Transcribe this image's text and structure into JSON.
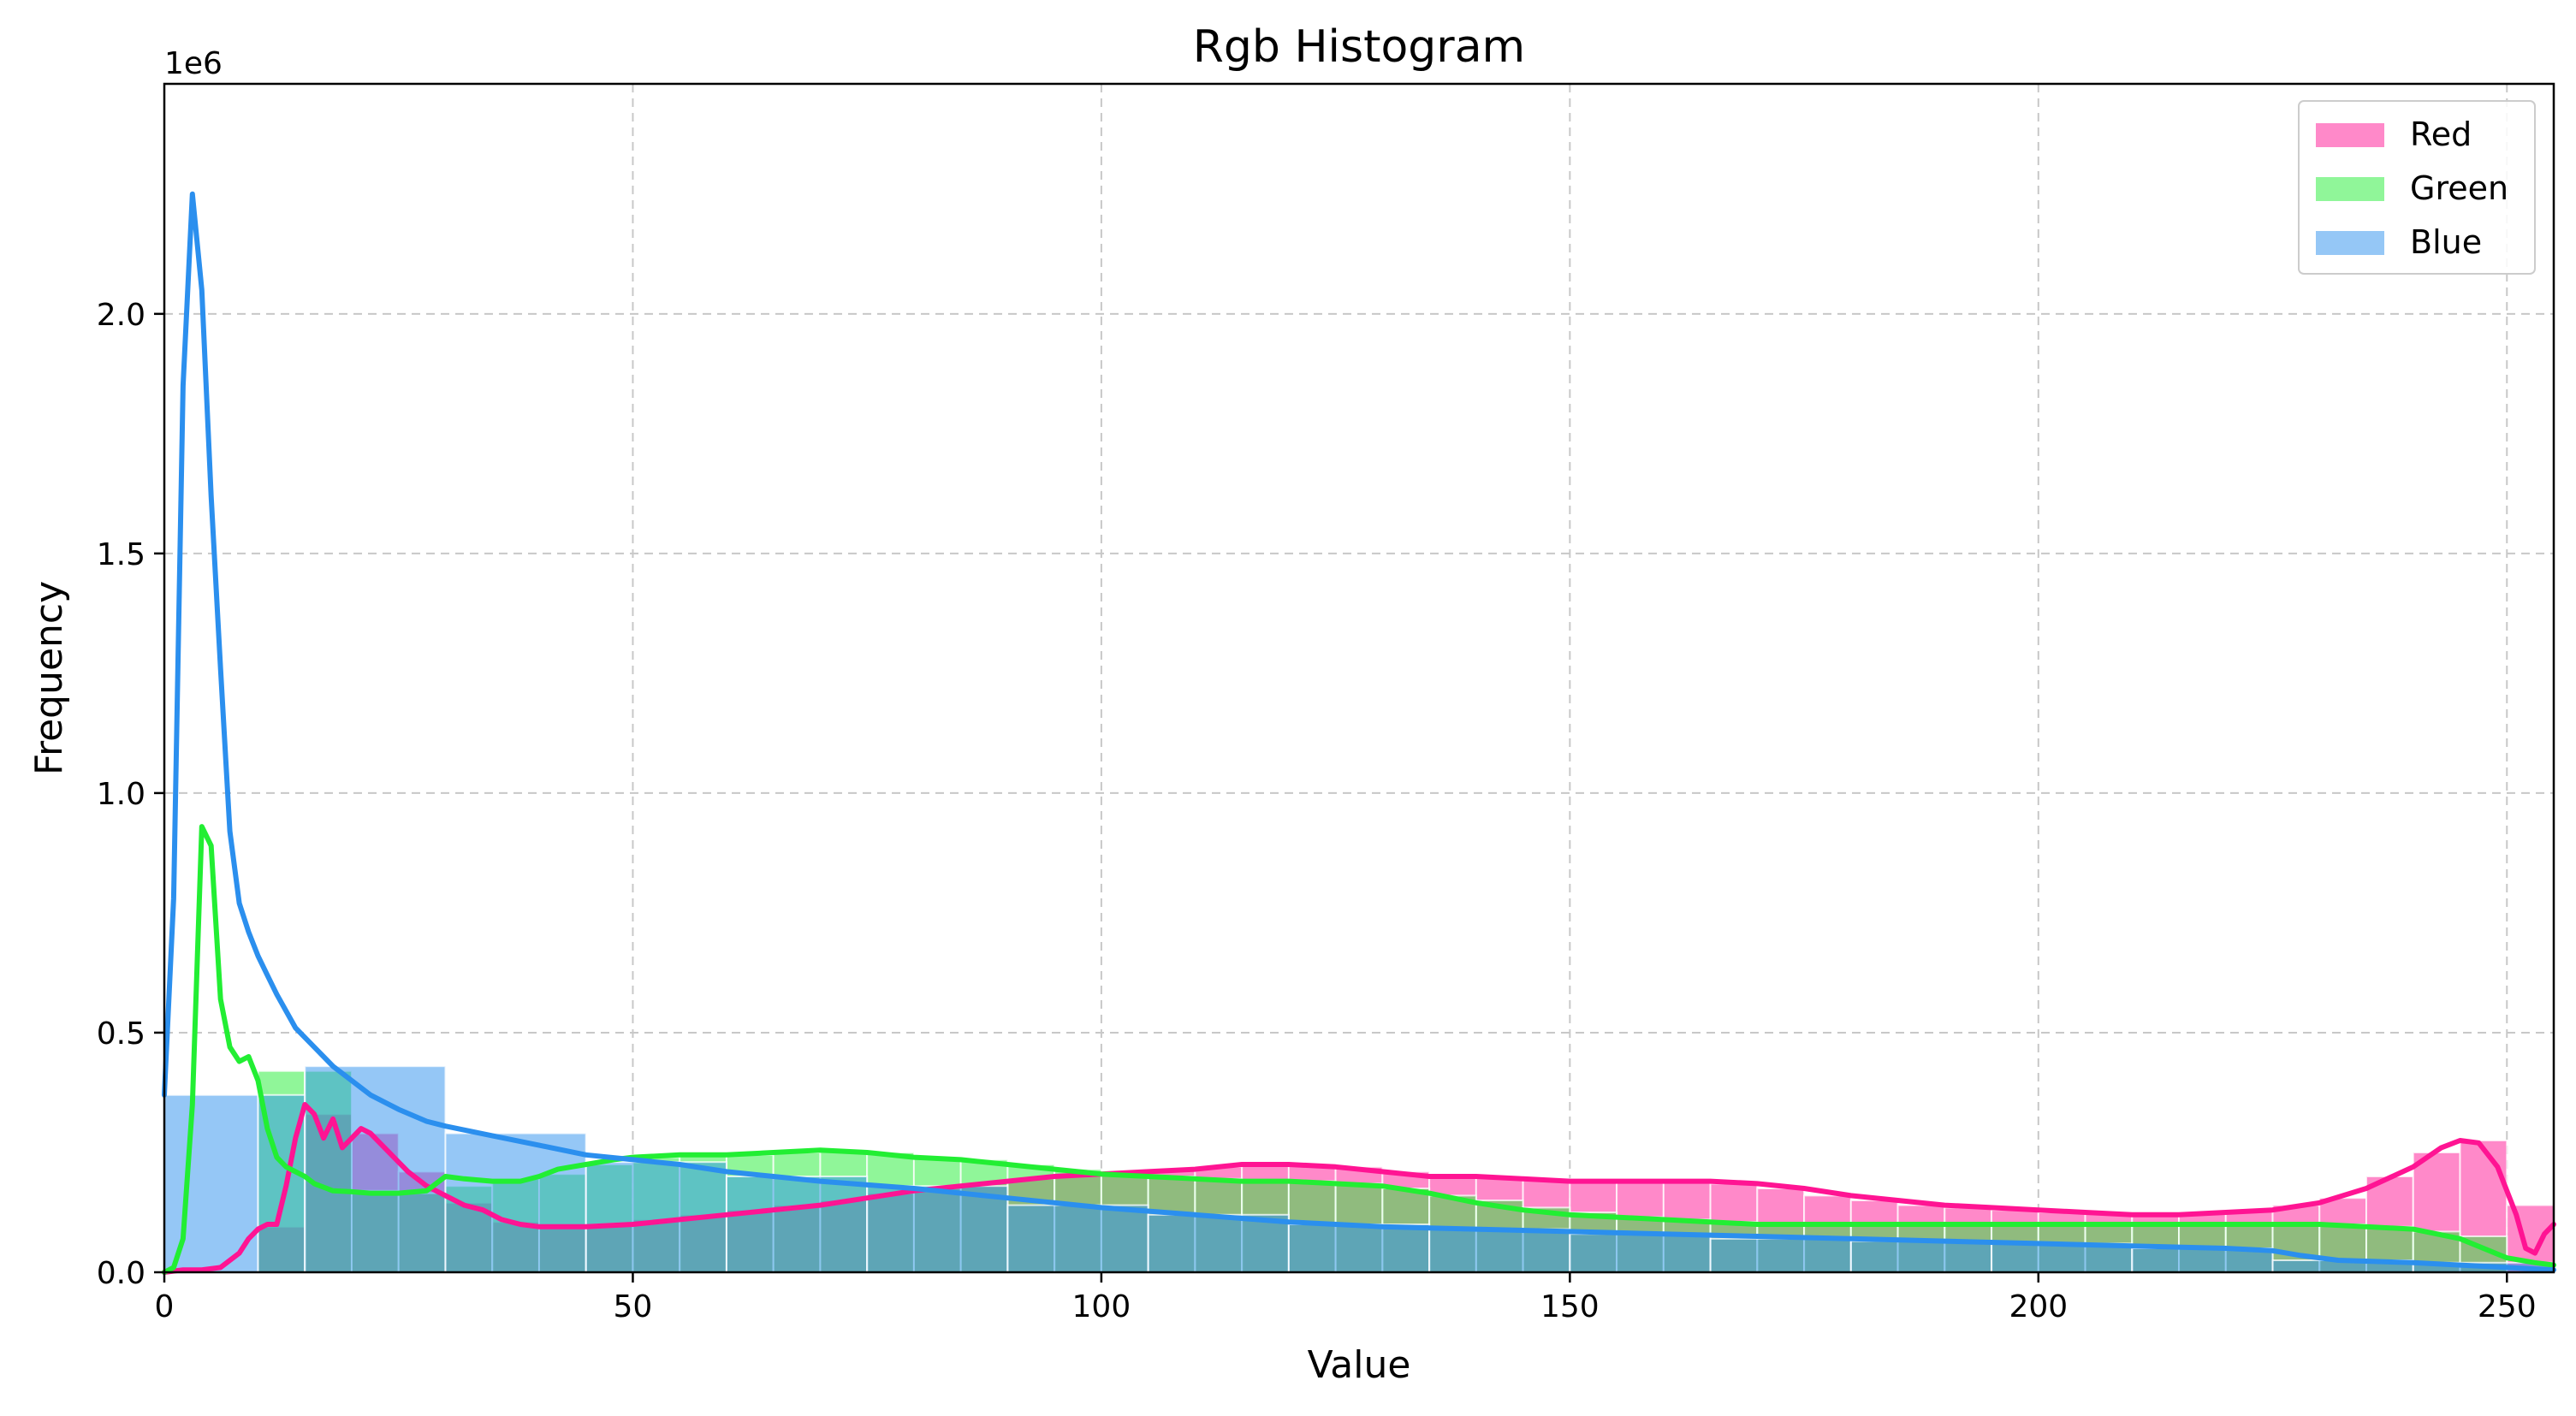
{
  "chart_data": {
    "type": "bar",
    "title": "Rgb Histogram",
    "xlabel": "Value",
    "ylabel": "Frequency",
    "y_offset_label": "1e6",
    "xlim": [
      0,
      255
    ],
    "ylim": [
      0,
      2.48
    ],
    "y_unit_multiplier": 1000000,
    "x_ticks": [
      0,
      50,
      100,
      150,
      200,
      250
    ],
    "y_ticks": [
      0.0,
      0.5,
      1.0,
      1.5,
      2.0
    ],
    "y_tick_labels": [
      "0.0",
      "0.5",
      "1.0",
      "1.5",
      "2.0"
    ],
    "grid": true,
    "legend_position": "top-right",
    "series": [
      {
        "name": "Red",
        "color": "#ff1493",
        "bar_alpha": 0.5,
        "bins": [
          [
            10,
            15,
            0.095
          ],
          [
            15,
            20,
            0.33
          ],
          [
            20,
            25,
            0.29
          ],
          [
            25,
            30,
            0.21
          ],
          [
            30,
            35,
            0.145
          ],
          [
            35,
            40,
            0.105
          ],
          [
            40,
            45,
            0.095
          ],
          [
            45,
            50,
            0.1
          ],
          [
            50,
            55,
            0.11
          ],
          [
            55,
            60,
            0.12
          ],
          [
            60,
            65,
            0.13
          ],
          [
            65,
            70,
            0.14
          ],
          [
            70,
            75,
            0.15
          ],
          [
            75,
            80,
            0.165
          ],
          [
            80,
            85,
            0.175
          ],
          [
            85,
            90,
            0.185
          ],
          [
            90,
            95,
            0.195
          ],
          [
            95,
            100,
            0.205
          ],
          [
            100,
            105,
            0.21
          ],
          [
            105,
            110,
            0.215
          ],
          [
            110,
            115,
            0.22
          ],
          [
            115,
            120,
            0.225
          ],
          [
            120,
            125,
            0.225
          ],
          [
            125,
            130,
            0.22
          ],
          [
            130,
            135,
            0.21
          ],
          [
            135,
            140,
            0.205
          ],
          [
            140,
            145,
            0.2
          ],
          [
            145,
            150,
            0.195
          ],
          [
            150,
            155,
            0.19
          ],
          [
            155,
            160,
            0.19
          ],
          [
            160,
            165,
            0.19
          ],
          [
            165,
            170,
            0.185
          ],
          [
            170,
            175,
            0.175
          ],
          [
            175,
            180,
            0.16
          ],
          [
            180,
            185,
            0.15
          ],
          [
            185,
            190,
            0.14
          ],
          [
            190,
            195,
            0.135
          ],
          [
            195,
            200,
            0.13
          ],
          [
            200,
            205,
            0.125
          ],
          [
            205,
            210,
            0.125
          ],
          [
            210,
            215,
            0.125
          ],
          [
            215,
            220,
            0.125
          ],
          [
            220,
            225,
            0.13
          ],
          [
            225,
            230,
            0.14
          ],
          [
            230,
            235,
            0.155
          ],
          [
            235,
            240,
            0.2
          ],
          [
            240,
            245,
            0.25
          ],
          [
            245,
            250,
            0.275
          ],
          [
            250,
            255,
            0.14
          ]
        ],
        "kde_x": [
          0,
          2,
          4,
          6,
          8,
          9,
          10,
          11,
          12,
          13,
          14,
          15,
          16,
          17,
          18,
          19,
          20,
          21,
          22,
          23,
          24,
          25,
          26,
          28,
          30,
          32,
          34,
          36,
          38,
          40,
          45,
          50,
          55,
          60,
          65,
          70,
          75,
          80,
          85,
          90,
          95,
          100,
          105,
          110,
          115,
          120,
          125,
          130,
          135,
          140,
          145,
          150,
          155,
          160,
          165,
          170,
          175,
          180,
          185,
          190,
          195,
          200,
          205,
          210,
          215,
          220,
          225,
          230,
          235,
          240,
          243,
          245,
          247,
          249,
          251,
          252,
          253,
          254,
          255
        ],
        "kde_y": [
          0,
          0.005,
          0.005,
          0.01,
          0.04,
          0.07,
          0.09,
          0.1,
          0.1,
          0.18,
          0.28,
          0.35,
          0.33,
          0.28,
          0.32,
          0.26,
          0.28,
          0.3,
          0.29,
          0.27,
          0.25,
          0.23,
          0.21,
          0.18,
          0.16,
          0.14,
          0.13,
          0.11,
          0.1,
          0.095,
          0.095,
          0.1,
          0.11,
          0.12,
          0.13,
          0.14,
          0.155,
          0.17,
          0.18,
          0.19,
          0.2,
          0.205,
          0.21,
          0.215,
          0.225,
          0.225,
          0.22,
          0.21,
          0.2,
          0.2,
          0.195,
          0.19,
          0.19,
          0.19,
          0.19,
          0.185,
          0.175,
          0.16,
          0.15,
          0.14,
          0.135,
          0.13,
          0.125,
          0.12,
          0.12,
          0.125,
          0.13,
          0.145,
          0.175,
          0.22,
          0.26,
          0.275,
          0.27,
          0.22,
          0.12,
          0.05,
          0.04,
          0.08,
          0.1
        ]
      },
      {
        "name": "Green",
        "color": "#22ee33",
        "bar_alpha": 0.5,
        "bins": [
          [
            10,
            15,
            0.42
          ],
          [
            15,
            20,
            0.42
          ],
          [
            20,
            25,
            0.17
          ],
          [
            25,
            30,
            0.165
          ],
          [
            30,
            35,
            0.18
          ],
          [
            35,
            40,
            0.195
          ],
          [
            40,
            45,
            0.205
          ],
          [
            45,
            50,
            0.225
          ],
          [
            50,
            55,
            0.24
          ],
          [
            55,
            60,
            0.245
          ],
          [
            60,
            65,
            0.245
          ],
          [
            65,
            70,
            0.25
          ],
          [
            70,
            75,
            0.255
          ],
          [
            75,
            80,
            0.25
          ],
          [
            80,
            85,
            0.24
          ],
          [
            85,
            90,
            0.235
          ],
          [
            90,
            95,
            0.225
          ],
          [
            95,
            100,
            0.215
          ],
          [
            100,
            105,
            0.205
          ],
          [
            105,
            110,
            0.2
          ],
          [
            110,
            115,
            0.195
          ],
          [
            115,
            120,
            0.19
          ],
          [
            120,
            125,
            0.19
          ],
          [
            125,
            130,
            0.185
          ],
          [
            130,
            135,
            0.175
          ],
          [
            135,
            140,
            0.16
          ],
          [
            140,
            145,
            0.15
          ],
          [
            145,
            150,
            0.135
          ],
          [
            150,
            155,
            0.125
          ],
          [
            155,
            160,
            0.115
          ],
          [
            160,
            165,
            0.11
          ],
          [
            165,
            170,
            0.105
          ],
          [
            170,
            175,
            0.1
          ],
          [
            175,
            180,
            0.1
          ],
          [
            180,
            185,
            0.1
          ],
          [
            185,
            190,
            0.1
          ],
          [
            190,
            195,
            0.1
          ],
          [
            195,
            200,
            0.1
          ],
          [
            200,
            205,
            0.1
          ],
          [
            205,
            210,
            0.1
          ],
          [
            210,
            215,
            0.1
          ],
          [
            215,
            220,
            0.1
          ],
          [
            220,
            225,
            0.1
          ],
          [
            225,
            230,
            0.1
          ],
          [
            230,
            235,
            0.1
          ],
          [
            235,
            240,
            0.095
          ],
          [
            240,
            245,
            0.085
          ],
          [
            245,
            250,
            0.075
          ]
        ],
        "kde_x": [
          0,
          1,
          2,
          3,
          4,
          5,
          6,
          7,
          8,
          9,
          10,
          11,
          12,
          13,
          14,
          15,
          16,
          18,
          20,
          22,
          25,
          28,
          30,
          32,
          35,
          38,
          40,
          42,
          45,
          48,
          50,
          55,
          60,
          65,
          70,
          75,
          80,
          85,
          90,
          95,
          100,
          105,
          110,
          115,
          120,
          125,
          130,
          135,
          140,
          145,
          150,
          155,
          160,
          165,
          170,
          175,
          180,
          185,
          190,
          195,
          200,
          205,
          210,
          215,
          220,
          225,
          230,
          235,
          240,
          245,
          250,
          253,
          255
        ],
        "kde_y": [
          0,
          0.01,
          0.07,
          0.35,
          0.93,
          0.89,
          0.57,
          0.47,
          0.44,
          0.45,
          0.4,
          0.3,
          0.24,
          0.22,
          0.21,
          0.2,
          0.185,
          0.17,
          0.168,
          0.165,
          0.165,
          0.17,
          0.2,
          0.195,
          0.19,
          0.19,
          0.2,
          0.215,
          0.225,
          0.235,
          0.24,
          0.245,
          0.245,
          0.25,
          0.255,
          0.25,
          0.24,
          0.235,
          0.225,
          0.215,
          0.205,
          0.2,
          0.195,
          0.19,
          0.19,
          0.185,
          0.18,
          0.165,
          0.145,
          0.13,
          0.12,
          0.115,
          0.11,
          0.105,
          0.1,
          0.1,
          0.1,
          0.1,
          0.1,
          0.1,
          0.1,
          0.1,
          0.1,
          0.1,
          0.1,
          0.1,
          0.1,
          0.095,
          0.09,
          0.07,
          0.03,
          0.02,
          0.015
        ]
      },
      {
        "name": "Blue",
        "color": "#2b8fee",
        "bar_alpha": 0.5,
        "bins": [
          [
            0,
            10,
            0.37
          ],
          [
            10,
            15,
            0.37
          ],
          [
            15,
            30,
            0.43
          ],
          [
            30,
            45,
            0.29
          ],
          [
            45,
            60,
            0.23
          ],
          [
            60,
            75,
            0.2
          ],
          [
            75,
            90,
            0.18
          ],
          [
            90,
            105,
            0.14
          ],
          [
            105,
            120,
            0.12
          ],
          [
            120,
            135,
            0.1
          ],
          [
            135,
            150,
            0.09
          ],
          [
            150,
            165,
            0.08
          ],
          [
            165,
            180,
            0.07
          ],
          [
            180,
            195,
            0.065
          ],
          [
            195,
            210,
            0.06
          ],
          [
            210,
            225,
            0.05
          ],
          [
            225,
            240,
            0.025
          ],
          [
            240,
            255,
            0.02
          ]
        ],
        "kde_x": [
          0,
          1,
          2,
          3,
          4,
          5,
          6,
          7,
          8,
          9,
          10,
          11,
          12,
          14,
          16,
          18,
          20,
          22,
          25,
          28,
          30,
          35,
          40,
          45,
          50,
          55,
          60,
          65,
          70,
          80,
          90,
          100,
          110,
          120,
          130,
          140,
          150,
          160,
          170,
          180,
          190,
          200,
          210,
          220,
          225,
          228,
          232,
          240,
          245,
          250,
          255
        ],
        "kde_y": [
          0.37,
          0.78,
          1.85,
          2.25,
          2.05,
          1.62,
          1.26,
          0.92,
          0.77,
          0.71,
          0.66,
          0.62,
          0.58,
          0.51,
          0.47,
          0.43,
          0.4,
          0.37,
          0.34,
          0.315,
          0.305,
          0.285,
          0.265,
          0.245,
          0.235,
          0.225,
          0.21,
          0.2,
          0.19,
          0.175,
          0.155,
          0.135,
          0.12,
          0.105,
          0.095,
          0.09,
          0.085,
          0.08,
          0.075,
          0.07,
          0.065,
          0.06,
          0.055,
          0.05,
          0.045,
          0.035,
          0.025,
          0.02,
          0.015,
          0.01,
          0.005
        ]
      }
    ]
  }
}
